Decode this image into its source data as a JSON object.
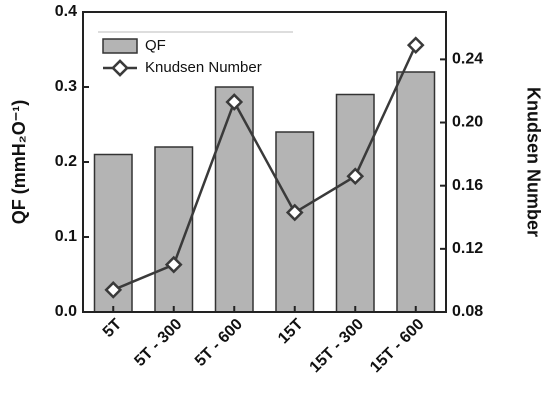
{
  "chart_data": {
    "type": "bar_line",
    "categories": [
      "5T",
      "5T - 300",
      "5T - 600",
      "15T",
      "15T - 300",
      "15T - 600"
    ],
    "series": [
      {
        "name": "QF",
        "type": "bar",
        "color": "#b4b4b4",
        "values": [
          0.21,
          0.22,
          0.3,
          0.24,
          0.29,
          0.32
        ]
      },
      {
        "name": "Knudsen Number",
        "type": "line",
        "axis": "y2",
        "color": "#3a3a3a",
        "values": [
          0.094,
          0.11,
          0.213,
          0.143,
          0.166,
          0.249
        ]
      }
    ],
    "ylabel": "QF (mmH₂O⁻¹)",
    "y2label": "Knudsen Number",
    "ylim": [
      0,
      0.4
    ],
    "yticks": [
      {
        "value": 0,
        "label": "0.0"
      },
      0.1,
      0.2,
      0.3,
      0.4
    ],
    "y2lim": [
      0.08,
      0.27
    ],
    "y2ticks": [
      0.08,
      0.12,
      0.16,
      {
        "value": 0.2,
        "label": "0.20"
      },
      0.24
    ],
    "legend": "top-left",
    "grid": false
  }
}
